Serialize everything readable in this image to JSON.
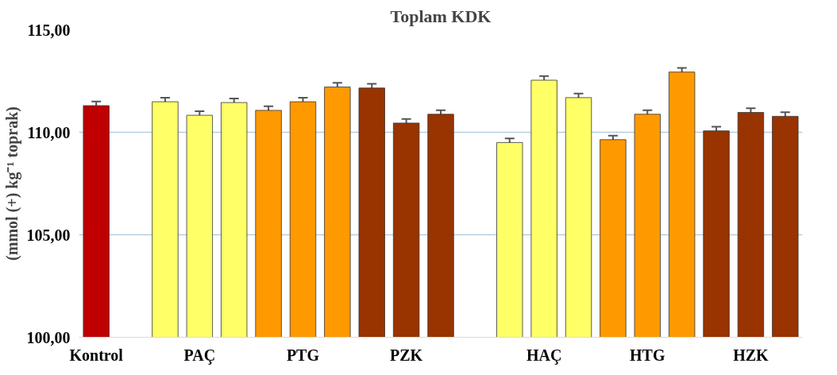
{
  "chart_data": {
    "type": "bar",
    "title": "Toplam KDK",
    "ylabel": "(mmol (+) kg⁻¹ toprak)",
    "categories": [
      "Kontrol",
      null,
      null,
      "PAÇ",
      null,
      null,
      "PTG",
      null,
      null,
      "PZK",
      null,
      null,
      null,
      "HAÇ",
      null,
      null,
      "HTG",
      null,
      null,
      "HZK",
      null
    ],
    "values": [
      111.3,
      null,
      111.49,
      110.83,
      111.45,
      111.07,
      111.49,
      112.21,
      112.16,
      110.45,
      110.88,
      null,
      109.5,
      112.54,
      111.69,
      109.64,
      110.88,
      112.94,
      110.07,
      110.97,
      110.78
    ],
    "colors": [
      "#c00000",
      null,
      "#ffff66",
      "#ffff66",
      "#ffff66",
      "#ff9900",
      "#ff9900",
      "#ff9900",
      "#993300",
      "#993300",
      "#993300",
      null,
      "#ffff66",
      "#ffff66",
      "#ffff66",
      "#ff9900",
      "#ff9900",
      "#ff9900",
      "#993300",
      "#993300",
      "#993300"
    ],
    "errors": [
      0.2,
      null,
      0.2,
      0.2,
      0.2,
      0.2,
      0.2,
      0.2,
      0.2,
      0.2,
      0.2,
      null,
      0.2,
      0.2,
      0.2,
      0.2,
      0.2,
      0.2,
      0.2,
      0.2,
      0.2
    ],
    "ylim": [
      100,
      115
    ],
    "yticks": [
      {
        "value": 100,
        "label": "100,00"
      },
      {
        "value": 105,
        "label": "105,00"
      },
      {
        "value": 110,
        "label": "110,00"
      },
      {
        "value": 115,
        "label": "115,00"
      }
    ],
    "grid": "y"
  }
}
